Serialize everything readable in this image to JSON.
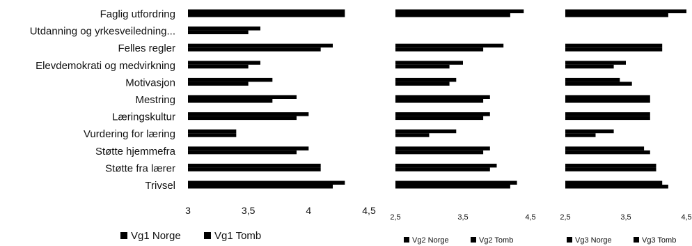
{
  "chart_data": [
    {
      "type": "bar",
      "orientation": "horizontal",
      "categories": [
        "Faglig utfordring",
        "Utdanning og yrkesveiledning...",
        "Felles regler",
        "Elevdemokrati og medvirkning",
        "Motivasjon",
        "Mestring",
        "Læringskultur",
        "Vurdering for læring",
        "Støtte hjemmefra",
        "Støtte fra lærer",
        "Trivsel"
      ],
      "series": [
        {
          "name": "Vg1 Norge",
          "values": [
            4.3,
            3.6,
            4.2,
            3.6,
            3.7,
            3.9,
            4.0,
            3.4,
            4.0,
            4.1,
            4.3
          ]
        },
        {
          "name": "Vg1 Tomb",
          "values": [
            4.3,
            3.5,
            4.1,
            3.5,
            3.5,
            3.7,
            3.9,
            3.4,
            3.9,
            4.1,
            4.2
          ]
        }
      ],
      "xlim": [
        3,
        4.5
      ],
      "x_ticks": [
        "3",
        "3,5",
        "4",
        "4,5"
      ],
      "legend_position": "bottom"
    },
    {
      "type": "bar",
      "orientation": "horizontal",
      "categories": [
        "Faglig utfordring",
        "Utdanning og yrkesveiledning...",
        "Felles regler",
        "Elevdemokrati og medvirkning",
        "Motivasjon",
        "Mestring",
        "Læringskultur",
        "Vurdering for læring",
        "Støtte hjemmefra",
        "Støtte fra lærer",
        "Trivsel"
      ],
      "series": [
        {
          "name": "Vg2 Norge",
          "values": [
            4.4,
            null,
            4.1,
            3.5,
            3.4,
            3.9,
            3.9,
            3.4,
            3.9,
            4.0,
            4.3
          ]
        },
        {
          "name": "Vg2 Tomb",
          "values": [
            4.2,
            null,
            3.8,
            3.3,
            3.3,
            3.8,
            3.8,
            3.0,
            3.8,
            3.9,
            4.2
          ]
        }
      ],
      "xlim": [
        2.5,
        4.5
      ],
      "x_ticks": [
        "2,5",
        "3,5",
        "4,5"
      ],
      "legend_position": "bottom"
    },
    {
      "type": "bar",
      "orientation": "horizontal",
      "categories": [
        "Faglig utfordring",
        "Utdanning og yrkesveiledning...",
        "Felles regler",
        "Elevdemokrati og medvirkning",
        "Motivasjon",
        "Mestring",
        "Læringskultur",
        "Vurdering for læring",
        "Støtte hjemmefra",
        "Støtte fra lærer",
        "Trivsel"
      ],
      "series": [
        {
          "name": "Vg3 Norge",
          "values": [
            4.5,
            null,
            4.1,
            3.5,
            3.4,
            3.9,
            3.9,
            3.3,
            3.8,
            4.0,
            4.1
          ]
        },
        {
          "name": "Vg3 Tomb",
          "values": [
            4.2,
            null,
            4.1,
            3.3,
            3.6,
            3.9,
            3.9,
            3.0,
            3.9,
            4.0,
            4.2
          ]
        }
      ],
      "xlim": [
        2.5,
        4.5
      ],
      "x_ticks": [
        "2,5",
        "3,5",
        "4,5"
      ],
      "legend_position": "bottom"
    }
  ],
  "colors": {
    "bar": "#000000",
    "text": "#111111"
  }
}
